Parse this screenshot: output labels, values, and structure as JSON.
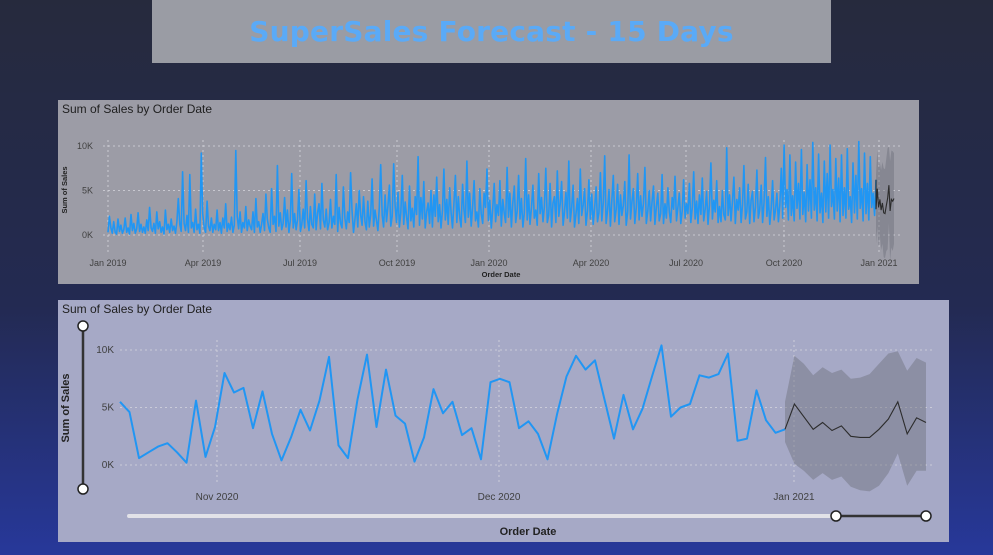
{
  "header": {
    "title": "SuperSales Forecast - 15 Days"
  },
  "colors": {
    "series": "#2196f3",
    "forecast": "#2c2c2c",
    "confidence_band": "#6c6e7a",
    "title": "#5aaaf7"
  },
  "chart_data": [
    {
      "type": "line",
      "title": "Sum of Sales by Order Date",
      "xlabel": "Order Date",
      "ylabel": "Sum of Sales",
      "y_ticks": [
        "0K",
        "5K",
        "10K"
      ],
      "x_ticks": [
        "Jan 2019",
        "Apr 2019",
        "Jul 2019",
        "Oct 2019",
        "Jan 2020",
        "Apr 2020",
        "Jul 2020",
        "Oct 2020",
        "Jan 2021"
      ],
      "ylim": [
        0,
        11000
      ],
      "xlim": [
        "2019-01-01",
        "2021-01-15"
      ],
      "grid": true,
      "series": [
        {
          "values": [
            300,
            2100,
            800,
            200,
            1500,
            300,
            100,
            1800,
            400,
            1100,
            200,
            600,
            1900,
            300,
            800,
            100,
            2300,
            500,
            1300,
            200,
            700,
            2500,
            400,
            1200,
            300,
            900,
            200,
            1700,
            500,
            3100,
            800,
            400,
            1300,
            200,
            2600,
            700,
            1500,
            300,
            900,
            100,
            2800,
            600,
            1200,
            300,
            1800,
            500,
            1000,
            200,
            1500,
            4100,
            1200,
            400,
            7100,
            1300,
            500,
            2200,
            300,
            6800,
            800,
            1400,
            300,
            2900,
            600,
            1200,
            200,
            9200,
            2400,
            800,
            300,
            3800,
            1000,
            500,
            1900,
            300,
            1200,
            600,
            2800,
            500,
            1400,
            200,
            1900,
            800,
            3500,
            400,
            1300,
            600,
            2000,
            300,
            1100,
            9500,
            2100,
            700,
            2600,
            300,
            1400,
            800,
            3200,
            500,
            1700,
            1000,
            600,
            2600,
            300,
            4100,
            900,
            1500,
            300,
            1200,
            2400,
            500,
            4600,
            1800,
            800,
            300,
            5200,
            1200,
            2100,
            400,
            7800,
            1000,
            2500,
            600,
            1300,
            4200,
            900,
            2800,
            300,
            1600,
            6900,
            800,
            2400,
            600,
            1700,
            5100,
            400,
            1200,
            2900,
            800,
            6100,
            1800,
            500,
            3200,
            1200,
            800,
            4600,
            600,
            2500,
            3500,
            700,
            5800,
            1700,
            900,
            2900,
            600,
            1400,
            4000,
            800,
            2100,
            1200,
            6800,
            400,
            3100,
            1300,
            800,
            5400,
            1900,
            700,
            2600,
            1400,
            7000,
            2800,
            300,
            1700,
            3500,
            900,
            5000,
            2200,
            1100,
            4300,
            1500,
            600,
            3800,
            900,
            2300,
            6300,
            1000,
            2800,
            1700,
            500,
            3100,
            7900,
            2200,
            900,
            4500,
            1500,
            3200,
            5600,
            1000,
            2100,
            8000,
            3300,
            1400,
            4800,
            900,
            2500,
            6700,
            1200,
            3700,
            2000,
            700,
            5500,
            1600,
            3000,
            900,
            4300,
            2300,
            8800,
            1100,
            4200,
            1800,
            6000,
            800,
            2600,
            3600,
            1300,
            5000,
            900,
            4500,
            2100,
            6500,
            1500,
            3400,
            800,
            2800,
            7400,
            1700,
            4000,
            1200,
            5300,
            2500,
            800,
            3700,
            6700,
            1400,
            4300,
            2000,
            900,
            5700,
            2800,
            1400,
            8300,
            2000,
            4700,
            1000,
            3100,
            6100,
            1600,
            2600,
            900,
            5200,
            2400,
            1300,
            4700,
            3100,
            7400,
            1600,
            3900,
            800,
            2900,
            5800,
            1500,
            3400,
            2200,
            6100,
            1000,
            4000,
            2500,
            1400,
            7600,
            2000,
            4700,
            900,
            3600,
            5500,
            1400,
            2600,
            6700,
            1800,
            4100,
            900,
            2500,
            8600,
            1700,
            4500,
            1200,
            3100,
            5600,
            1900,
            2800,
            1100,
            6900,
            2400,
            4200,
            1500,
            3200,
            7500,
            1400,
            2200,
            5800,
            900,
            3600,
            4300,
            1400,
            7200,
            2100,
            3500,
            6000,
            1100,
            2600,
            4800,
            1900,
            8300,
            1500,
            3100,
            5600,
            900,
            2400,
            4100,
            1300,
            7400,
            2200,
            3400,
            5200,
            1100,
            2700,
            6200,
            1800,
            4600,
            1200,
            3000,
            5400,
            1500,
            2500,
            7000,
            1600,
            3700,
            8900,
            1300,
            2800,
            5100,
            1000,
            4000,
            6700,
            1500,
            2900,
            5700,
            1200,
            4500,
            2200,
            3300,
            6000,
            1100,
            2600,
            9000,
            1800,
            3800,
            5200,
            1300,
            3100,
            6900,
            1700,
            4400,
            2100,
            3500,
            7600,
            1300,
            2700,
            5000,
            1600,
            3800,
            5500,
            1200,
            3200,
            4700,
            1600,
            2400,
            6800,
            1300,
            3500,
            1900,
            5300,
            2600,
            1400,
            4200,
            2900,
            6600,
            1600,
            3100,
            4700,
            1300,
            2700,
            6200,
            1900,
            3500,
            2400,
            5800,
            1400,
            3100,
            7100,
            1800,
            3800,
            1300,
            4500,
            2300,
            6400,
            1600,
            2900,
            4900,
            1200,
            3400,
            8100,
            1800,
            3900,
            2600,
            6100,
            1400,
            3200,
            1500,
            5000,
            2300,
            1700,
            9800,
            2200,
            4500,
            1600,
            3700,
            6500,
            1300,
            4000,
            2800,
            5300,
            1400,
            3400,
            7800,
            1800,
            2600,
            5700,
            1300,
            3900,
            4900,
            1500,
            3100,
            7300,
            1900,
            2800,
            5600,
            1400,
            3600,
            8700,
            2100,
            4300,
            1200,
            3000,
            6100,
            1700,
            2800,
            4700,
            1500,
            3300,
            7500,
            1900,
            10100,
            3100,
            5100,
            1700,
            9000,
            2200,
            4400,
            1600,
            8200,
            3000,
            5800,
            1800,
            9600,
            2300,
            4800,
            1500,
            7900,
            2700,
            6200,
            1900,
            10400,
            2800,
            5300,
            1600,
            9100,
            2500,
            4700,
            1400,
            8300,
            2600,
            6900,
            1900,
            10100,
            3200,
            5100,
            1800,
            8600,
            2700,
            6400,
            1500,
            9000,
            2200,
            5300,
            1900,
            9700,
            2900,
            4300,
            1400,
            8100,
            2500,
            6700,
            1800,
            10500,
            3000,
            5200,
            1600,
            9200,
            2400,
            5800,
            1700,
            8800,
            3100,
            4700,
            2200,
            6200
          ],
          "note_range": [
            "2019-01-01",
            "2020-12-30"
          ]
        }
      ],
      "forecast": {
        "values": [
          2900,
          5200,
          3100,
          4000,
          2800,
          3600,
          2500,
          2400,
          3300,
          4100,
          5600,
          2700,
          4000,
          3800,
          4100
        ],
        "upper": [
          6800,
          9500,
          7600,
          8100,
          7300,
          8200,
          7500,
          7400,
          8600,
          9800,
          9900,
          8300,
          9500,
          9400,
          9200
        ],
        "lower": [
          -1000,
          900,
          -1400,
          -100,
          -1700,
          -1000,
          -2500,
          -2600,
          -1800,
          -1600,
          1300,
          -2900,
          -1400,
          -1800,
          -1000
        ]
      }
    },
    {
      "type": "line",
      "title": "Sum of Sales by Order Date",
      "xlabel": "Order Date",
      "ylabel": "Sum of Sales",
      "y_ticks": [
        "0K",
        "5K",
        "10K"
      ],
      "x_ticks": [
        "Nov 2020",
        "Dec 2020",
        "Jan 2021"
      ],
      "ylim": [
        -2500,
        11000
      ],
      "grid": true,
      "series": [
        {
          "values": [
            5500,
            4600,
            600,
            1100,
            1600,
            1900,
            1100,
            200,
            5600,
            700,
            3300,
            8000,
            6300,
            6700,
            3200,
            6400,
            2700,
            400,
            2400,
            4800,
            3000,
            5600,
            9400,
            1700,
            600,
            5700,
            9600,
            3300,
            8300,
            4300,
            3600,
            300,
            2400,
            6600,
            4500,
            5500,
            2600,
            3200,
            500,
            7200,
            7500,
            7200,
            3200,
            3800,
            2700,
            500,
            4400,
            7700,
            9500,
            8300,
            9100,
            5700,
            2300,
            6100,
            3100,
            4900,
            7700,
            10400,
            4200,
            5000,
            5300,
            7800,
            7600,
            7900,
            9700,
            2100,
            2300,
            6500,
            3900,
            2800,
            3100
          ]
        }
      ],
      "forecast": {
        "values": [
          3100,
          5300,
          4200,
          3100,
          3700,
          3000,
          3400,
          2500,
          2400,
          2400,
          3100,
          4000,
          5500,
          2700,
          4100,
          3700
        ],
        "upper": [
          5500,
          9500,
          8800,
          7800,
          8500,
          8000,
          8300,
          7500,
          7600,
          7900,
          8800,
          9700,
          9900,
          8200,
          9300,
          8900
        ],
        "lower": [
          2000,
          100,
          -500,
          -1300,
          -700,
          -1300,
          -1000,
          -1900,
          -2200,
          -2300,
          -1800,
          -700,
          1000,
          -1800,
          -500,
          -500
        ]
      }
    }
  ]
}
